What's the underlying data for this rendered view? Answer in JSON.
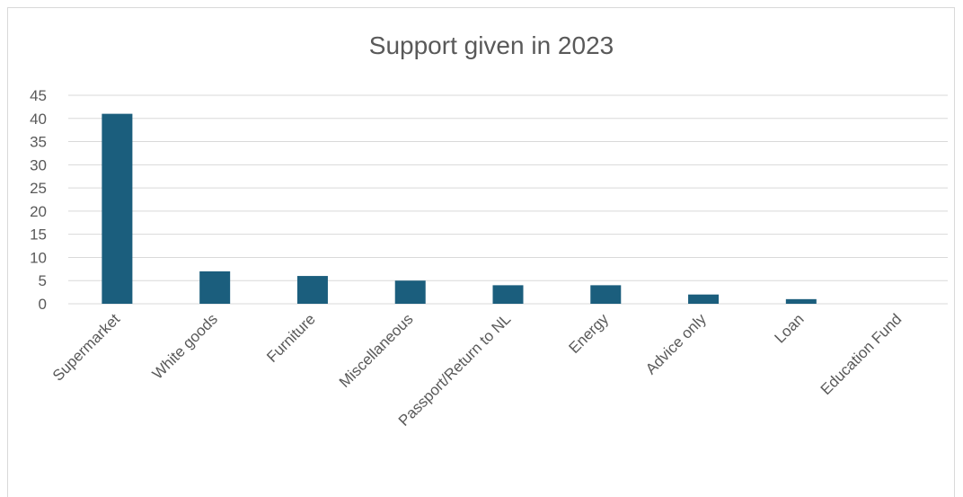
{
  "chart_data": {
    "type": "bar",
    "title": "Support given in 2023",
    "categories": [
      "Supermarket",
      "White goods",
      "Furniture",
      "Miscellaneous",
      "Passport/Return to NL",
      "Energy",
      "Advice only",
      "Loan",
      "Education Fund"
    ],
    "values": [
      41,
      7,
      6,
      5,
      4,
      4,
      2,
      1,
      0
    ],
    "xlabel": "",
    "ylabel": "",
    "ylim": [
      0,
      45
    ],
    "yticks": [
      0,
      5,
      10,
      15,
      20,
      25,
      30,
      35,
      40,
      45
    ],
    "grid": true,
    "legend": "none",
    "bar_color": "#1b5e7d",
    "grid_color": "#d9d9d9"
  }
}
